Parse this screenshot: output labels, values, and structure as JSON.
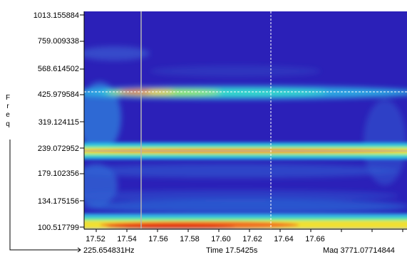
{
  "y_axis": {
    "title_letters": [
      "F",
      "r",
      "e",
      "q"
    ],
    "tick_labels": [
      "1013.155884",
      "759.009338",
      "568.614502",
      "425.979584",
      "319.124115",
      "239.072952",
      "179.102356",
      "134.175156",
      "100.517799"
    ]
  },
  "x_axis": {
    "tick_labels": [
      "17.52",
      "17.54",
      "17.56",
      "17.58",
      "17.60",
      "17.62",
      "17.64",
      "17.66"
    ]
  },
  "status": {
    "frequency": "225.654831Hz",
    "time": "Time 17.5425s",
    "magnitude": "Mag 3771.07714844"
  },
  "colors": {
    "background": "#2b20b8",
    "cursor_line": "#b4b4b4",
    "axis": "#000000"
  }
}
